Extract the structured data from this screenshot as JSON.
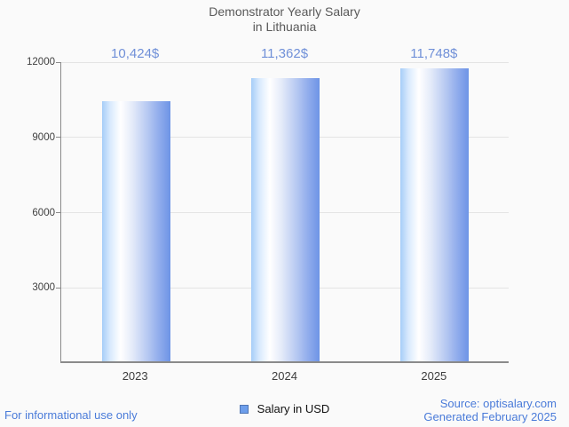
{
  "title": {
    "line1": "Demonstrator Yearly Salary",
    "line2": "in Lithuania"
  },
  "chart_data": {
    "type": "bar",
    "title": "Demonstrator Yearly Salary in Lithuania",
    "categories": [
      "2023",
      "2024",
      "2025"
    ],
    "values": [
      10424,
      11362,
      11748
    ],
    "value_labels": [
      "10,424$",
      "11,362$",
      "11,748$"
    ],
    "series": [
      {
        "name": "Salary in USD",
        "values": [
          10424,
          11362,
          11748
        ]
      }
    ],
    "xlabel": "",
    "ylabel": "",
    "ylim": [
      0,
      12000
    ],
    "yticks": [
      3000,
      6000,
      9000,
      12000
    ],
    "grid": "horizontal",
    "legend_position": "bottom-center"
  },
  "legend": {
    "label": "Salary in USD",
    "swatch_color": "#6d9eeb"
  },
  "footer": {
    "left": "For informational use only",
    "source": "Source: optisalary.com",
    "generated": "Generated February 2025"
  },
  "colors": {
    "background": "#fafafa",
    "title_text": "#595959",
    "value_label_text": "#7090d8",
    "axis_label_text": "#404040",
    "axis_line": "#8a8a8a",
    "gridline": "#e4e4e4",
    "bar_gradient": [
      "#a6cdf8",
      "#ffffff",
      "#6d94e6"
    ],
    "footer_text": "#4a7bd9"
  }
}
